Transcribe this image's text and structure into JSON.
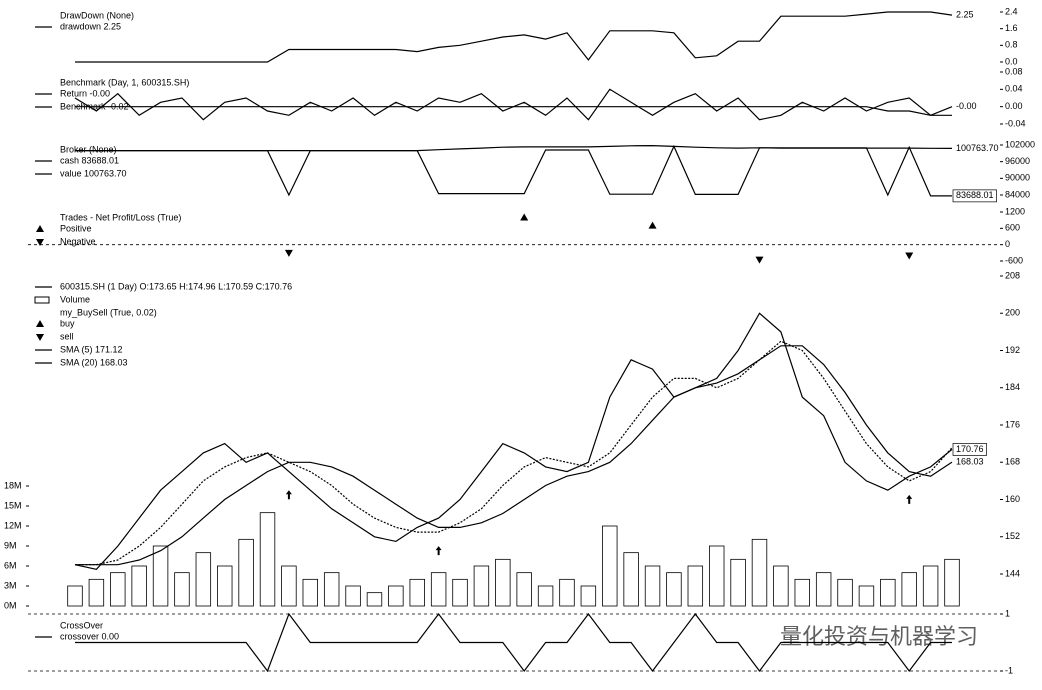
{
  "chart_data": [
    {
      "type": "line",
      "title": "DrawDown (None)",
      "ylim": [
        0,
        2.4
      ],
      "yticks": [
        {
          "value": 0,
          "label": "0.0"
        },
        0.8,
        1.6,
        2.4
      ],
      "series": [
        {
          "name": "drawdown 2.25",
          "color": "#000000",
          "end_label": "2.25",
          "values": [
            0,
            0,
            0,
            0,
            0,
            0,
            0,
            0,
            0,
            0,
            0.6,
            0.6,
            0.6,
            0.6,
            0.6,
            0.6,
            0.5,
            0.7,
            0.8,
            1.0,
            1.2,
            1.3,
            1.1,
            1.4,
            0.1,
            1.5,
            1.5,
            1.5,
            1.4,
            0.2,
            0.3,
            1.0,
            1.0,
            2.2,
            2.2,
            2.2,
            2.2,
            2.3,
            2.4,
            2.4,
            2.4,
            2.25
          ]
        }
      ]
    },
    {
      "type": "line",
      "title": "Benchmark (Day, 1, 600315.SH)",
      "ylim": [
        -0.04,
        0.08
      ],
      "yticks": [
        -0.04,
        {
          "value": 0,
          "label": "0.00"
        },
        0.04,
        0.08
      ],
      "series": [
        {
          "name": "Return -0.00",
          "color": "#000000",
          "end_label": "-0.00",
          "values": [
            0.02,
            -0.01,
            0.03,
            -0.02,
            0.01,
            0.02,
            -0.03,
            0.01,
            0.02,
            -0.01,
            -0.02,
            0.01,
            -0.01,
            0.02,
            -0.02,
            0.01,
            -0.01,
            0.02,
            0.01,
            0.03,
            -0.01,
            0.01,
            -0.02,
            0.02,
            -0.03,
            0.04,
            0.01,
            -0.02,
            0.01,
            0.03,
            -0.01,
            0.02,
            -0.03,
            -0.02,
            0.01,
            -0.01,
            0.02,
            -0.01,
            0.01,
            0.02,
            -0.02,
            0
          ]
        },
        {
          "name": "Benchmark -0.02",
          "color": "#000000",
          "values": [
            0,
            0,
            0,
            0,
            0,
            0,
            0,
            0,
            0,
            0,
            0,
            0,
            0,
            0,
            0,
            0,
            0,
            0,
            0,
            0,
            0,
            0,
            0,
            0,
            0,
            0,
            0,
            0,
            0,
            0,
            0,
            0,
            0,
            0,
            0,
            0,
            0,
            0,
            -0.01,
            -0.01,
            -0.02,
            -0.02
          ]
        }
      ]
    },
    {
      "type": "line",
      "title": "Broker (None)",
      "ylim": [
        84000,
        102000
      ],
      "yticks": [
        84000,
        90000,
        96000,
        102000
      ],
      "series": [
        {
          "name": "cash 83688.01",
          "color": "#000000",
          "end_label": "83688.01",
          "boxed": true,
          "values": [
            100000,
            100000,
            100000,
            100000,
            100000,
            100000,
            100000,
            100000,
            100000,
            100000,
            84000,
            100000,
            100000,
            100000,
            100000,
            100000,
            100000,
            84500,
            84500,
            84500,
            84500,
            84500,
            100200,
            100200,
            100200,
            84300,
            84300,
            84300,
            101500,
            84200,
            84200,
            84200,
            101000,
            101000,
            101000,
            101000,
            101000,
            101000,
            84000,
            101200,
            83688.01,
            83688.01
          ]
        },
        {
          "name": "value 100763.70",
          "color": "#000000",
          "end_label": "100763.70",
          "values": [
            100000,
            100000,
            100000,
            100000,
            100000,
            100000,
            100000,
            100000,
            100000,
            100000,
            100000,
            100000,
            100000,
            100000,
            100000,
            100000,
            100000,
            100300,
            100600,
            100900,
            101200,
            101300,
            101300,
            101300,
            101300,
            101500,
            101700,
            101800,
            101500,
            101200,
            101000,
            100900,
            101000,
            100900,
            100900,
            100900,
            100900,
            100900,
            100900,
            100900,
            100800,
            100763.7
          ]
        }
      ]
    },
    {
      "type": "scatter",
      "title": "Trades - Net Profit/Loss (True)",
      "ylim": [
        -600,
        1200
      ],
      "yticks": [
        -600,
        0,
        600,
        1200
      ],
      "zero_line": true,
      "series": [
        {
          "name": "Positive",
          "color": "#000000",
          "marker": "^",
          "values": [
            null,
            null,
            null,
            null,
            null,
            null,
            null,
            null,
            null,
            null,
            null,
            null,
            null,
            null,
            null,
            null,
            null,
            null,
            null,
            null,
            null,
            1000,
            null,
            null,
            null,
            null,
            null,
            700,
            null,
            null,
            null,
            null,
            null,
            null,
            null,
            null,
            null,
            null,
            null,
            null,
            null,
            null
          ]
        },
        {
          "name": "Negative",
          "color": "#000000",
          "marker": "v",
          "values": [
            null,
            null,
            null,
            null,
            null,
            null,
            null,
            null,
            null,
            null,
            -300,
            null,
            null,
            null,
            null,
            null,
            null,
            null,
            null,
            null,
            null,
            null,
            null,
            null,
            null,
            null,
            null,
            null,
            null,
            null,
            null,
            null,
            -550,
            null,
            null,
            null,
            null,
            null,
            null,
            -400,
            null,
            null
          ]
        }
      ]
    },
    {
      "type": "line",
      "ylim": [
        144,
        208
      ],
      "yticks": [
        144,
        152,
        160,
        168,
        176,
        184,
        192,
        200,
        208
      ],
      "y2lim": [
        0,
        18000000
      ],
      "y2ticks": [
        {
          "value": 0,
          "label": "0M"
        },
        {
          "value": 3000000,
          "label": "3M"
        },
        {
          "value": 6000000,
          "label": "6M"
        },
        {
          "value": 9000000,
          "label": "9M"
        },
        {
          "value": 12000000,
          "label": "12M"
        },
        {
          "value": 15000000,
          "label": "15M"
        },
        {
          "value": 18000000,
          "label": "18M"
        }
      ],
      "series": [
        {
          "name": "600315.SH (1 Day) O:173.65 H:174.96 L:170.59 C:170.76",
          "color": "#000000",
          "end_label": "170.76",
          "boxed": true,
          "values": [
            146,
            145,
            150,
            156,
            162,
            166,
            170,
            172,
            168,
            170,
            166,
            162,
            158,
            155,
            152,
            151,
            154,
            156,
            160,
            166,
            172,
            170,
            167,
            166,
            168,
            182,
            190,
            188,
            182,
            184,
            186,
            192,
            200,
            196,
            182,
            178,
            168,
            164,
            162,
            165,
            167,
            170.76
          ]
        },
        {
          "name": "Volume",
          "color": "#000000",
          "type": "bar",
          "axis": "y2",
          "values": [
            3000000,
            4000000,
            5000000,
            6000000,
            9000000,
            5000000,
            8000000,
            6000000,
            10000000,
            14000000,
            6000000,
            4000000,
            5000000,
            3000000,
            2000000,
            3000000,
            4000000,
            5000000,
            4000000,
            6000000,
            7000000,
            5000000,
            3000000,
            4000000,
            3000000,
            12000000,
            8000000,
            6000000,
            5000000,
            6000000,
            9000000,
            7000000,
            10000000,
            6000000,
            4000000,
            5000000,
            4000000,
            3000000,
            4000000,
            5000000,
            6000000,
            7000000
          ]
        },
        {
          "name": "buy",
          "group": "my_BuySell (True, 0.02)",
          "color": "#000000",
          "type": "scatter",
          "marker": "up-arrow",
          "values": [
            null,
            null,
            null,
            null,
            null,
            null,
            null,
            null,
            null,
            null,
            162,
            null,
            null,
            null,
            null,
            null,
            null,
            150,
            null,
            null,
            null,
            null,
            null,
            null,
            null,
            null,
            null,
            null,
            null,
            null,
            null,
            null,
            null,
            null,
            null,
            null,
            null,
            null,
            null,
            161,
            null,
            null
          ]
        },
        {
          "name": "sell",
          "color": "#000000",
          "type": "scatter",
          "marker": "down-arrow",
          "values": [
            null,
            null,
            null,
            null,
            null,
            null,
            null,
            null,
            null,
            null,
            null,
            null,
            null,
            null,
            null,
            null,
            null,
            null,
            null,
            null,
            null,
            null,
            null,
            null,
            null,
            null,
            null,
            null,
            null,
            null,
            null,
            null,
            null,
            null,
            null,
            null,
            null,
            null,
            null,
            null,
            null,
            null
          ]
        },
        {
          "name": "SMA (5) 171.12",
          "color": "#000000",
          "dash": true,
          "values": [
            146,
            146,
            147,
            150,
            154,
            159,
            164,
            167,
            169,
            170,
            168,
            166,
            163,
            159,
            156,
            154,
            153,
            153,
            155,
            158,
            163,
            167,
            169,
            168,
            167,
            170,
            176,
            182,
            186,
            186,
            184,
            186,
            190,
            194,
            192,
            186,
            179,
            172,
            167,
            164,
            166,
            171.12
          ]
        },
        {
          "name": "SMA (20) 168.03",
          "color": "#000000",
          "end_label": "168.03",
          "values": [
            146,
            146,
            146,
            147,
            149,
            152,
            156,
            160,
            163,
            166,
            168,
            168,
            167,
            165,
            162,
            159,
            156,
            154,
            154,
            155,
            157,
            160,
            163,
            165,
            166,
            168,
            172,
            177,
            182,
            184,
            185,
            187,
            190,
            193,
            193,
            189,
            183,
            176,
            170,
            166,
            165,
            168.03
          ]
        }
      ]
    },
    {
      "type": "line",
      "title": "CrossOver",
      "ylim": [
        -1,
        1
      ],
      "yticks": [
        -1,
        1
      ],
      "grid": true,
      "series": [
        {
          "name": "crossover 0.00",
          "color": "#000000",
          "values": [
            0,
            0,
            0,
            0,
            0,
            0,
            0,
            0,
            0,
            -1,
            1,
            0,
            0,
            0,
            0,
            0,
            0,
            1,
            0,
            0,
            0,
            -1,
            0,
            0,
            1,
            0,
            0,
            -1,
            0,
            1,
            0,
            0,
            -1,
            0,
            0,
            0,
            0,
            0,
            0,
            -1,
            0,
            0
          ]
        }
      ]
    }
  ],
  "watermark": "量化投资与机器学习"
}
